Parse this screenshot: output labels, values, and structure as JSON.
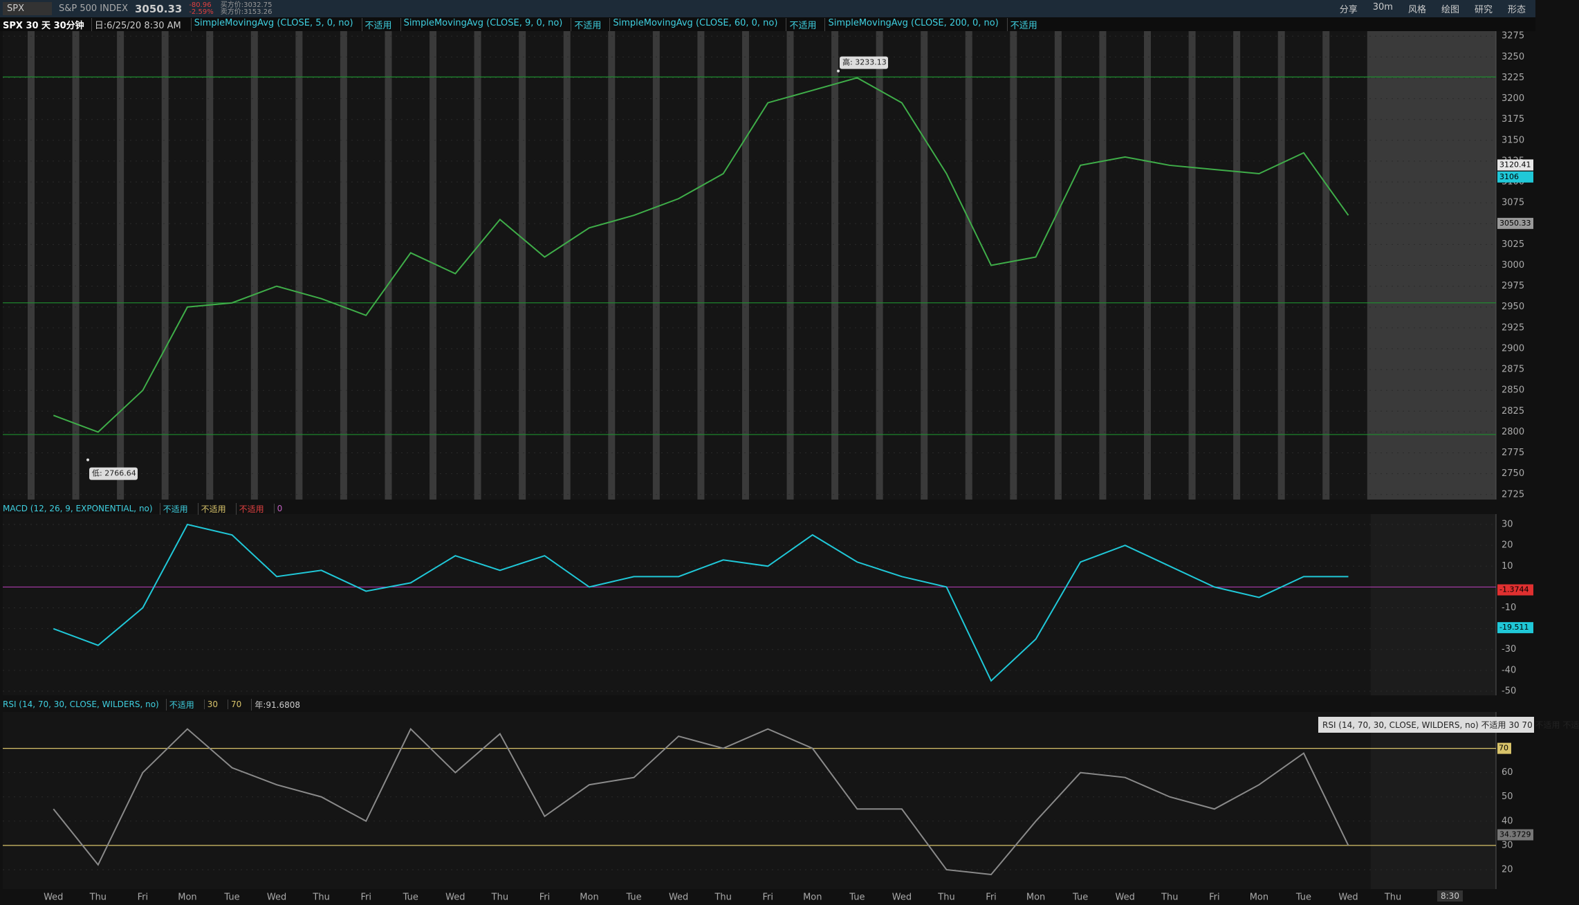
{
  "toolbar": {
    "symbol": "SPX",
    "name": "S&P 500 INDEX",
    "last": "3050.33",
    "change": "-80.96",
    "change_pct": "-2.59%",
    "bid": "买方价:3032.75",
    "ask": "卖方价:3153.26",
    "buttons": [
      "分享",
      "30m",
      "风格",
      "绘图",
      "研究",
      "形态"
    ]
  },
  "study_bar": {
    "chart": "SPX 30 天 30分钟",
    "date": "日:6/25/20 8:30 AM",
    "studies": [
      {
        "name": "SimpleMovingAvg (CLOSE, 5, 0, no)",
        "value": "不适用"
      },
      {
        "name": "SimpleMovingAvg (CLOSE, 9, 0, no)",
        "value": "不适用"
      },
      {
        "name": "SimpleMovingAvg (CLOSE, 60, 0, no)",
        "value": "不适用"
      },
      {
        "name": "SimpleMovingAvg (CLOSE, 200, 0, no)",
        "value": "不适用"
      }
    ]
  },
  "macd_bar": {
    "name": "MACD (12, 26, 9, EXPONENTIAL, no)",
    "values": [
      "不适用",
      "不适用",
      "不适用",
      "0"
    ]
  },
  "rsi_bar": {
    "name": "RSI (14, 70, 30, CLOSE, WILDERS, no)",
    "value": "不适用",
    "extra": "年:91.6808"
  },
  "tooltip": "RSI (14, 70, 30, CLOSE, WILDERS, no) 不适用 30 70 不适用 不适",
  "time_badge": "8:30",
  "chart_data": [
    {
      "type": "line",
      "title": "SPX",
      "ylim": [
        2719,
        3281
      ],
      "yticks": [
        2725,
        2750,
        2775,
        2800,
        2825,
        2850,
        2875,
        2900,
        2925,
        2950,
        2975,
        3000,
        3025,
        3050,
        3075,
        3100,
        3125,
        3150,
        3175,
        3200,
        3225,
        3250,
        3275
      ],
      "series": [
        {
          "name": "SPX",
          "color": "#3fae49",
          "values": [
            2820,
            2800,
            2850,
            2950,
            2955,
            2975,
            2960,
            2940,
            3015,
            2990,
            3055,
            3010,
            3045,
            3060,
            3080,
            3110,
            3195,
            3210,
            3225,
            3195,
            3110,
            3000,
            3010,
            3120,
            3130,
            3120,
            3115,
            3110,
            3135,
            3060,
            null
          ]
        }
      ],
      "levels": [
        3226,
        2955,
        2797
      ],
      "level_color": "#1f8f2f",
      "markers": [
        {
          "value": 3120.41,
          "color": "#e8e8e8"
        },
        {
          "value": 3106,
          "color": "#20c8d8"
        },
        {
          "value": 3050.33,
          "color": "#9a9a9a"
        }
      ],
      "annotations": [
        {
          "label": "高: 3233.13",
          "value": 3233.13
        },
        {
          "label": "低: 2766.64",
          "value": 2766.64
        }
      ]
    },
    {
      "type": "line",
      "title": "MACD",
      "ylim": [
        -52,
        35
      ],
      "yticks": [
        30,
        20,
        10,
        -10,
        -20,
        -30,
        -40,
        -50
      ],
      "baseline": 0,
      "series": [
        {
          "name": "MACD",
          "color": "#20c8d8",
          "values": [
            -20,
            -28,
            -10,
            30,
            25,
            5,
            8,
            -2,
            2,
            15,
            8,
            15,
            0,
            5,
            5,
            13,
            10,
            25,
            12,
            5,
            0,
            -45,
            -25,
            12,
            20,
            10,
            0,
            -5,
            5,
            5,
            null
          ]
        }
      ],
      "markers": [
        {
          "value": -1.3744,
          "color": "#e03030"
        },
        {
          "value": -19.511,
          "color": "#20c8d8"
        }
      ]
    },
    {
      "type": "line",
      "title": "RSI",
      "ylim": [
        12,
        85
      ],
      "yticks": [
        20,
        30,
        40,
        50,
        60
      ],
      "levels": [
        30,
        70
      ],
      "level_color": "#d8c36a",
      "categories": [
        "Wed",
        "Thu",
        "Fri",
        "Mon",
        "Tue",
        "Wed",
        "Thu",
        "Fri",
        "Tue",
        "Wed",
        "Thu",
        "Fri",
        "Mon",
        "Tue",
        "Wed",
        "Thu",
        "Fri",
        "Mon",
        "Tue",
        "Wed",
        "Thu",
        "Fri",
        "Mon",
        "Tue",
        "Wed",
        "Thu",
        "Fri",
        "Mon",
        "Tue",
        "Wed",
        "Thu"
      ],
      "series": [
        {
          "name": "RSI",
          "color": "#8a8a8a",
          "values": [
            45,
            22,
            60,
            78,
            62,
            55,
            50,
            40,
            78,
            60,
            76,
            42,
            55,
            58,
            75,
            70,
            78,
            70,
            45,
            45,
            20,
            18,
            40,
            60,
            58,
            50,
            45,
            55,
            68,
            30,
            null
          ]
        }
      ],
      "markers": [
        {
          "value": 34.3729,
          "color": "#777777"
        }
      ]
    }
  ]
}
